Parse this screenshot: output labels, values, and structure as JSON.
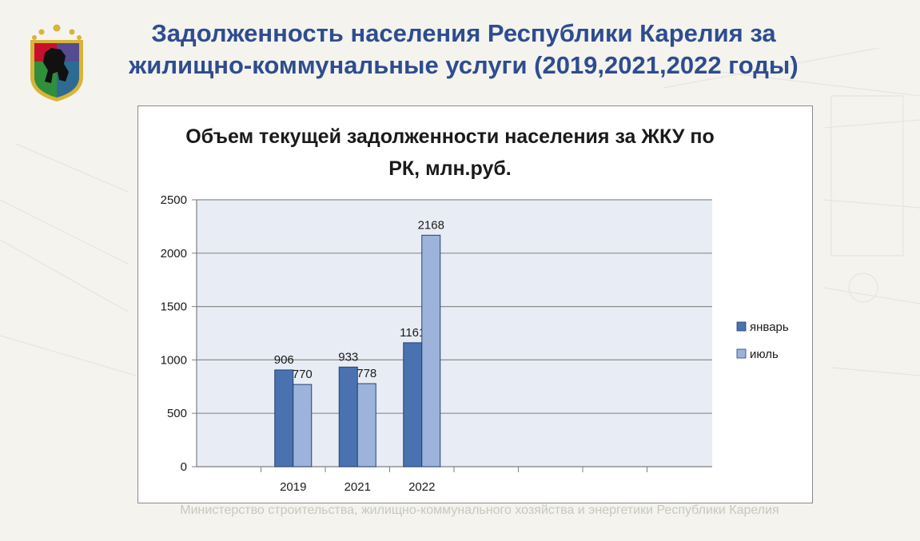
{
  "slide": {
    "title": "Задолженность населения Республики Карелия за жилищно-коммунальные услуги (2019,2021,2022 годы)",
    "footer": "Министерство строительства, жилищно-коммунального хозяйства и энергетики Республики Карелия"
  },
  "colors": {
    "title": "#2e4d8f",
    "plot_bg": "#e8edf5",
    "january": "#4a72b0",
    "july": "#9db3dc",
    "emblem_red": "#c8102e",
    "emblem_green": "#2f8f3a",
    "emblem_blue": "#2f5fb3",
    "emblem_gold": "#d8b437"
  },
  "chart_data": {
    "type": "bar",
    "title": "Объем текущей задолженности населения за ЖКУ по РК, млн.руб.",
    "categories": [
      "2019",
      "2021",
      "2022",
      "",
      "",
      ""
    ],
    "series": [
      {
        "name": "январь",
        "values": [
          906,
          933,
          1161,
          null,
          null,
          null
        ],
        "labels": [
          "906",
          "933",
          "1161",
          "",
          "",
          ""
        ]
      },
      {
        "name": "июль",
        "values": [
          770,
          778,
          2168,
          null,
          null,
          null
        ],
        "labels": [
          "770",
          "778",
          "2168",
          "",
          "",
          ""
        ]
      }
    ],
    "ylim": [
      0,
      2500
    ],
    "yticks": [
      0,
      500,
      1000,
      1500,
      2000,
      2500
    ],
    "grid": true,
    "legend": "right"
  }
}
